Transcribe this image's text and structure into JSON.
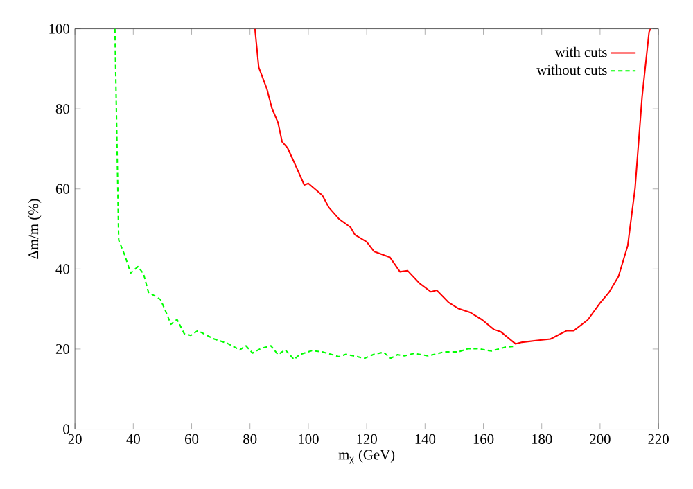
{
  "chart_data": {
    "type": "line",
    "xlabel": "m$_{χ}$ (GeV)",
    "ylabel": "Δm/m (%)",
    "xlim": [
      20,
      220
    ],
    "ylim": [
      0,
      100
    ],
    "xticks": [
      20,
      40,
      60,
      80,
      100,
      120,
      140,
      160,
      180,
      200,
      220
    ],
    "yticks": [
      0,
      20,
      40,
      60,
      80,
      100
    ],
    "grid": false,
    "legend": "top right",
    "marker": "none",
    "series": [
      {
        "name": "with cuts",
        "color": "#ff0000",
        "line_style": "solid",
        "x": [
          81.7,
          83,
          85.8,
          87.5,
          89.6,
          91,
          92.9,
          95.3,
          98.6,
          100,
          104.8,
          107,
          110.5,
          114.5,
          116,
          120,
          122.5,
          128,
          131.4,
          134,
          138,
          142,
          144,
          148,
          151.5,
          155.6,
          159.6,
          163.6,
          166,
          171,
          173.3,
          179,
          183,
          185.4,
          188.6,
          191,
          195.8,
          200,
          203,
          206.3,
          209.5,
          212,
          214.4,
          216.8,
          217.3
        ],
        "values": [
          100,
          90.4,
          85,
          80.2,
          76.6,
          71.8,
          70.2,
          66.4,
          61,
          61.4,
          58.4,
          55.4,
          52.5,
          50.4,
          48.5,
          46.8,
          44.4,
          42.9,
          39.3,
          39.6,
          36.5,
          34.3,
          34.7,
          31.7,
          30.1,
          29.1,
          27.3,
          24.9,
          24.3,
          21.3,
          21.7,
          22.2,
          22.5,
          23.4,
          24.6,
          24.6,
          27.3,
          31.5,
          34.1,
          38.1,
          45.9,
          60.2,
          83,
          99.2,
          100
        ]
      },
      {
        "name": "without cuts",
        "color": "#00ff00",
        "line_style": "dashed",
        "x": [
          33.7,
          35,
          37,
          39.1,
          41.6,
          43.5,
          45.2,
          49.3,
          50.9,
          52.9,
          55,
          57.5,
          59.7,
          62.1,
          67.4,
          72.3,
          76.5,
          78.6,
          80.9,
          83.9,
          87.2,
          89.6,
          92.1,
          95.1,
          97,
          101.2,
          104.8,
          110.5,
          112.9,
          119.3,
          122.5,
          125.8,
          128.2,
          130.6,
          133,
          136.2,
          141,
          146.7,
          151.5,
          154.8,
          158,
          162.8,
          167.7,
          171
        ],
        "values": [
          100,
          47.2,
          43.6,
          39,
          40.6,
          38.8,
          34.2,
          32.4,
          29.8,
          26.2,
          27.4,
          23.8,
          23.4,
          24.6,
          22.6,
          21.4,
          19.8,
          20.8,
          19,
          20.2,
          20.8,
          18.6,
          19.8,
          17.4,
          18.6,
          19.6,
          19.3,
          18.1,
          18.7,
          17.7,
          18.7,
          19.2,
          17.7,
          18.6,
          18.3,
          18.9,
          18.3,
          19.3,
          19.3,
          20.1,
          20.1,
          19.5,
          20.5,
          20.7
        ]
      }
    ]
  }
}
